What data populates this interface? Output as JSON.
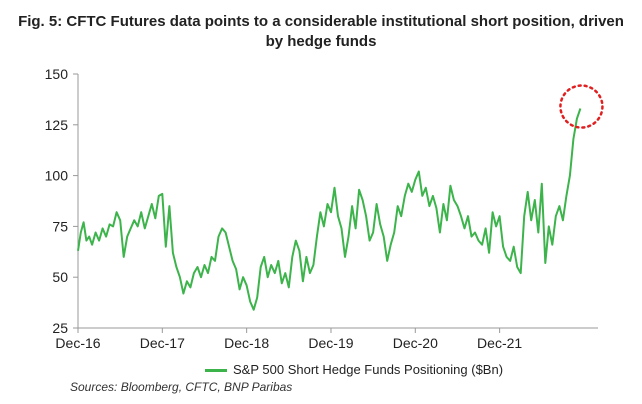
{
  "title_line1": "Fig. 5: CFTC Futures data points to a considerable institutional short position, driven",
  "title_line2": "by hedge funds",
  "source": "Sources: Bloomberg, CFTC, BNP Paribas",
  "colors": {
    "series": "#3cb44b",
    "highlight": "#e02020",
    "axis": "#999999"
  },
  "chart_data": {
    "type": "line",
    "title": "Fig. 5: CFTC Futures data points to a considerable institutional short position, driven by hedge funds",
    "xlabel": "",
    "ylabel": "",
    "ylim": [
      25,
      150
    ],
    "yticks": [
      25,
      50,
      75,
      100,
      125,
      150
    ],
    "xticks": [
      "Dec-16",
      "Dec-17",
      "Dec-18",
      "Dec-19",
      "Dec-20",
      "Dec-21"
    ],
    "legend_position": "bottom",
    "grid": false,
    "annotation": "dotted red circle around latest peak",
    "series": [
      {
        "name": "S&P 500 Short Hedge Funds Positioning ($Bn)",
        "x_unit": "months since Dec-16",
        "points": [
          [
            0,
            63
          ],
          [
            0.4,
            72
          ],
          [
            0.8,
            77
          ],
          [
            1.2,
            68
          ],
          [
            1.6,
            70
          ],
          [
            2,
            66
          ],
          [
            2.5,
            72
          ],
          [
            3,
            68
          ],
          [
            3.5,
            74
          ],
          [
            4,
            70
          ],
          [
            4.5,
            76
          ],
          [
            5,
            75
          ],
          [
            5.5,
            82
          ],
          [
            6,
            78
          ],
          [
            6.5,
            60
          ],
          [
            7,
            70
          ],
          [
            7.5,
            74
          ],
          [
            8,
            78
          ],
          [
            8.5,
            75
          ],
          [
            9,
            82
          ],
          [
            9.5,
            74
          ],
          [
            10,
            80
          ],
          [
            10.5,
            86
          ],
          [
            11,
            79
          ],
          [
            11.5,
            90
          ],
          [
            12,
            91
          ],
          [
            12.5,
            65
          ],
          [
            13,
            85
          ],
          [
            13.5,
            62
          ],
          [
            14,
            55
          ],
          [
            14.5,
            50
          ],
          [
            15,
            42
          ],
          [
            15.5,
            48
          ],
          [
            16,
            45
          ],
          [
            16.5,
            52
          ],
          [
            17,
            55
          ],
          [
            17.5,
            50
          ],
          [
            18,
            56
          ],
          [
            18.5,
            52
          ],
          [
            19,
            60
          ],
          [
            19.5,
            58
          ],
          [
            20,
            70
          ],
          [
            20.5,
            74
          ],
          [
            21,
            72
          ],
          [
            21.5,
            65
          ],
          [
            22,
            58
          ],
          [
            22.5,
            54
          ],
          [
            23,
            44
          ],
          [
            23.5,
            50
          ],
          [
            24,
            46
          ],
          [
            24.5,
            38
          ],
          [
            25,
            34
          ],
          [
            25.5,
            40
          ],
          [
            26,
            55
          ],
          [
            26.5,
            60
          ],
          [
            27,
            50
          ],
          [
            27.5,
            56
          ],
          [
            28,
            52
          ],
          [
            28.5,
            58
          ],
          [
            29,
            47
          ],
          [
            29.5,
            52
          ],
          [
            30,
            45
          ],
          [
            30.5,
            60
          ],
          [
            31,
            68
          ],
          [
            31.5,
            63
          ],
          [
            32,
            48
          ],
          [
            32.5,
            60
          ],
          [
            33,
            52
          ],
          [
            33.5,
            56
          ],
          [
            34,
            70
          ],
          [
            34.5,
            82
          ],
          [
            35,
            75
          ],
          [
            35.5,
            86
          ],
          [
            36,
            82
          ],
          [
            36.5,
            94
          ],
          [
            37,
            80
          ],
          [
            37.5,
            74
          ],
          [
            38,
            60
          ],
          [
            38.5,
            70
          ],
          [
            39,
            85
          ],
          [
            39.5,
            74
          ],
          [
            40,
            93
          ],
          [
            40.5,
            88
          ],
          [
            41,
            80
          ],
          [
            41.5,
            68
          ],
          [
            42,
            72
          ],
          [
            42.5,
            86
          ],
          [
            43,
            76
          ],
          [
            43.5,
            70
          ],
          [
            44,
            58
          ],
          [
            44.5,
            66
          ],
          [
            45,
            72
          ],
          [
            45.5,
            85
          ],
          [
            46,
            80
          ],
          [
            46.5,
            90
          ],
          [
            47,
            96
          ],
          [
            47.5,
            92
          ],
          [
            48,
            98
          ],
          [
            48.5,
            102
          ],
          [
            49,
            90
          ],
          [
            49.5,
            94
          ],
          [
            50,
            85
          ],
          [
            50.5,
            90
          ],
          [
            51,
            84
          ],
          [
            51.5,
            72
          ],
          [
            52,
            86
          ],
          [
            52.5,
            78
          ],
          [
            53,
            95
          ],
          [
            53.5,
            88
          ],
          [
            54,
            85
          ],
          [
            54.5,
            80
          ],
          [
            55,
            74
          ],
          [
            55.5,
            80
          ],
          [
            56,
            70
          ],
          [
            56.5,
            72
          ],
          [
            57,
            68
          ],
          [
            57.5,
            66
          ],
          [
            58,
            74
          ],
          [
            58.5,
            62
          ],
          [
            59,
            82
          ],
          [
            59.5,
            75
          ],
          [
            60,
            80
          ],
          [
            60.5,
            65
          ],
          [
            61,
            60
          ],
          [
            61.5,
            58
          ],
          [
            62,
            65
          ],
          [
            62.5,
            55
          ],
          [
            63,
            52
          ],
          [
            63.5,
            80
          ],
          [
            64,
            92
          ],
          [
            64.5,
            78
          ],
          [
            65,
            88
          ],
          [
            65.5,
            72
          ],
          [
            66,
            96
          ],
          [
            66.5,
            57
          ],
          [
            67,
            75
          ],
          [
            67.5,
            66
          ],
          [
            68,
            80
          ],
          [
            68.5,
            85
          ],
          [
            69,
            78
          ],
          [
            69.5,
            90
          ],
          [
            70,
            100
          ],
          [
            70.5,
            118
          ],
          [
            71,
            128
          ],
          [
            71.5,
            133
          ]
        ]
      }
    ]
  }
}
